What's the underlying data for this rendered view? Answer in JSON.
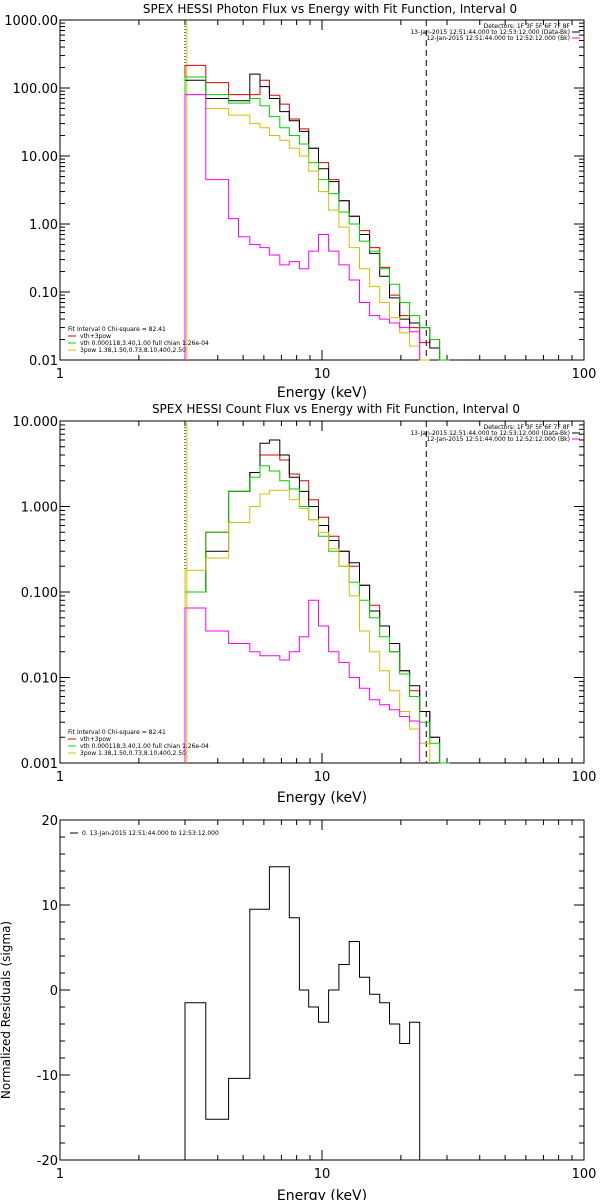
{
  "chart_data": [
    {
      "type": "line",
      "title": "SPEX HESSI Photon Flux vs Energy with Fit Function, Interval 0",
      "xlabel": "Energy (keV)",
      "ylabel": "",
      "x_scale": "log",
      "y_scale": "log",
      "xlim": [
        1,
        100
      ],
      "ylim": [
        0.01,
        1000
      ],
      "x_ticks": [
        {
          "value": 1,
          "label": "1"
        },
        {
          "value": 10,
          "label": "10"
        },
        {
          "value": 100,
          "label": "100"
        }
      ],
      "y_ticks": [
        {
          "value": 0.01,
          "label": "0.01"
        },
        {
          "value": 0.1,
          "label": "0.10"
        },
        {
          "value": 1,
          "label": "1.00"
        },
        {
          "value": 10,
          "label": "10.00"
        },
        {
          "value": 100,
          "label": "100.00"
        },
        {
          "value": 1000,
          "label": "1000.00"
        }
      ],
      "vlines": [
        {
          "x": 3.0,
          "style": "dotted",
          "color": "#000000"
        },
        {
          "x": 25.0,
          "style": "dashed",
          "color": "#000000"
        },
        {
          "x": 3.05,
          "style": "solid",
          "color": "#d4c200"
        }
      ],
      "info_top_right": [
        {
          "text": "Detectors: 1F 3F 5F 6F 7F 8F",
          "color": ""
        },
        {
          "text": "13-Jan-2015 12:51:44.000 to 12:53:12.000 (Data-Bk)",
          "color": "#000000"
        },
        {
          "text": "12-Jan-2015 12:51:44.000 to 12:52:12.000 (Bk)",
          "color": "#ff00ff"
        }
      ],
      "legend_bottom_left": [
        {
          "text": "Fit Interval 0   Chi-square = 82.41",
          "color": ""
        },
        {
          "text": "vth+3pow",
          "color": "#e00000"
        },
        {
          "text": "vth 0.000118,3.40,1.00  full chian 1.26e-04",
          "color": "#00d000"
        },
        {
          "text": "3pow 1.38,1.50,0.73,8.10,400,2.50",
          "color": "#d4c200"
        }
      ],
      "edges": [
        3.0,
        3.3,
        3.6,
        4.0,
        4.4,
        4.8,
        5.3,
        5.8,
        6.3,
        6.9,
        7.5,
        8.2,
        8.9,
        9.7,
        10.6,
        11.6,
        12.7,
        13.9,
        15.2,
        16.6,
        18.1,
        19.8,
        21.6,
        23.6,
        25.8,
        28.1,
        30.7
      ],
      "series": [
        {
          "color": "#e00000",
          "values": [
            215,
            215,
            120,
            120,
            80,
            80,
            80,
            130,
            78,
            58,
            35,
            25,
            13,
            8.0,
            4.5,
            2.2,
            1.3,
            0.8,
            0.45,
            0.23,
            0.09,
            0.045,
            0.03,
            0.018,
            0.02
          ]
        },
        {
          "color": "#000000",
          "values": [
            130,
            130,
            70,
            70,
            65,
            65,
            160,
            105,
            70,
            45,
            33,
            23,
            13,
            6.5,
            4.2,
            2.2,
            1.3,
            0.7,
            0.37,
            0.17,
            0.082,
            0.04,
            0.035,
            0.03,
            0.015,
            0.01
          ]
        },
        {
          "color": "#00d000",
          "values": [
            145,
            145,
            80,
            80,
            60,
            60,
            70,
            55,
            38,
            26,
            20,
            15,
            8.0,
            4.5,
            2.8,
            1.5,
            1.0,
            0.56,
            0.4,
            0.22,
            0.13,
            0.07,
            0.045,
            0.03,
            0.02,
            0.01
          ]
        },
        {
          "color": "#d4c200",
          "values": [
            80,
            80,
            50,
            50,
            40,
            40,
            30,
            26,
            20,
            17,
            13,
            10,
            6.0,
            3.0,
            1.6,
            0.9,
            0.45,
            0.22,
            0.12,
            0.07,
            0.042,
            0.025,
            0.016,
            0.01
          ]
        },
        {
          "color": "#ff00ff",
          "values": [
            80,
            80,
            4.5,
            4.5,
            1.2,
            0.65,
            0.5,
            0.45,
            0.35,
            0.25,
            0.28,
            0.22,
            0.4,
            0.7,
            0.4,
            0.25,
            0.15,
            0.07,
            0.045,
            0.04,
            0.035,
            0.03,
            0.026
          ]
        }
      ]
    },
    {
      "type": "line",
      "title": "SPEX HESSI Count Flux vs Energy with Fit Function, Interval 0",
      "xlabel": "Energy (keV)",
      "ylabel": "",
      "x_scale": "log",
      "y_scale": "log",
      "xlim": [
        1,
        100
      ],
      "ylim": [
        0.001,
        10
      ],
      "x_ticks": [
        {
          "value": 1,
          "label": "1"
        },
        {
          "value": 10,
          "label": "10"
        },
        {
          "value": 100,
          "label": "100"
        }
      ],
      "y_ticks": [
        {
          "value": 0.001,
          "label": "0.001"
        },
        {
          "value": 0.01,
          "label": "0.010"
        },
        {
          "value": 0.1,
          "label": "0.100"
        },
        {
          "value": 1,
          "label": "1.000"
        },
        {
          "value": 10,
          "label": "10.000"
        }
      ],
      "vlines": [
        {
          "x": 3.0,
          "style": "dotted",
          "color": "#000000"
        },
        {
          "x": 25.0,
          "style": "dashed",
          "color": "#000000"
        },
        {
          "x": 3.05,
          "style": "solid",
          "color": "#d4c200"
        }
      ],
      "info_top_right": [
        {
          "text": "Detectors: 1F 3F 5F 6F 7F 8F",
          "color": ""
        },
        {
          "text": "13-Jan-2015 12:51:44.000 to 12:53:12.000 (Data-Bk)",
          "color": "#000000"
        },
        {
          "text": "12-Jan-2015 12:51:44.000 to 12:52:12.000 (Bk)",
          "color": "#ff00ff"
        }
      ],
      "legend_bottom_left": [
        {
          "text": "Fit Interval 0   Chi-square = 82.41",
          "color": ""
        },
        {
          "text": "vth+3pow",
          "color": "#e00000"
        },
        {
          "text": "vth 0.000118,3.40,1.00  full chian 1.26e-04",
          "color": "#00d000"
        },
        {
          "text": "3pow 1.38,1.50,0.73,8.10,400,2.50",
          "color": "#d4c200"
        }
      ],
      "edges": [
        3.0,
        3.3,
        3.6,
        4.0,
        4.4,
        4.8,
        5.3,
        5.8,
        6.3,
        6.9,
        7.5,
        8.2,
        8.9,
        9.7,
        10.6,
        11.6,
        12.7,
        13.9,
        15.2,
        16.6,
        18.1,
        19.8,
        21.6,
        23.6,
        25.8,
        28.1,
        30.7
      ],
      "series": [
        {
          "color": "#e00000",
          "values": [
            0.1,
            0.1,
            0.5,
            0.5,
            1.5,
            1.5,
            2.5,
            4.0,
            4.0,
            3.5,
            2.4,
            2.0,
            1.2,
            0.75,
            0.45,
            0.3,
            0.2,
            0.12,
            0.07,
            0.04,
            0.02,
            0.012,
            0.007,
            0.004,
            0.002,
            0.001
          ]
        },
        {
          "color": "#000000",
          "values": [
            0.1,
            0.1,
            0.3,
            0.3,
            1.5,
            1.5,
            2.5,
            5.5,
            6.0,
            4.0,
            2.2,
            1.5,
            1.0,
            0.6,
            0.4,
            0.3,
            0.22,
            0.12,
            0.06,
            0.04,
            0.025,
            0.012,
            0.008,
            0.004,
            0.002,
            0.001
          ]
        },
        {
          "color": "#00d000",
          "values": [
            0.1,
            0.1,
            0.5,
            0.5,
            1.5,
            1.5,
            2.2,
            3.0,
            2.6,
            2.0,
            1.6,
            1.0,
            0.7,
            0.45,
            0.3,
            0.2,
            0.13,
            0.08,
            0.05,
            0.03,
            0.02,
            0.011,
            0.006,
            0.003,
            0.0017,
            0.001
          ]
        },
        {
          "color": "#d4c200",
          "values": [
            0.18,
            0.18,
            0.25,
            0.25,
            0.65,
            0.65,
            1.0,
            1.4,
            1.55,
            1.55,
            1.2,
            0.95,
            0.7,
            0.5,
            0.32,
            0.2,
            0.09,
            0.035,
            0.02,
            0.012,
            0.007,
            0.004,
            0.0025,
            0.0017
          ]
        },
        {
          "color": "#ff00ff",
          "values": [
            0.065,
            0.065,
            0.035,
            0.035,
            0.025,
            0.025,
            0.02,
            0.018,
            0.018,
            0.016,
            0.02,
            0.03,
            0.08,
            0.04,
            0.02,
            0.015,
            0.01,
            0.0075,
            0.0055,
            0.0048,
            0.0042,
            0.0035,
            0.0031
          ]
        }
      ]
    },
    {
      "type": "line",
      "title": "",
      "xlabel": "Energy (keV)",
      "ylabel": "Normalized Residuals (sigma)",
      "x_scale": "log",
      "y_scale": "linear",
      "xlim": [
        1,
        100
      ],
      "ylim": [
        -20,
        20
      ],
      "x_ticks": [
        {
          "value": 1,
          "label": "1"
        },
        {
          "value": 10,
          "label": "10"
        },
        {
          "value": 100,
          "label": "100"
        }
      ],
      "y_ticks": [
        {
          "value": -20,
          "label": "-20"
        },
        {
          "value": -10,
          "label": "-10"
        },
        {
          "value": 0,
          "label": "0"
        },
        {
          "value": 10,
          "label": "10"
        },
        {
          "value": 20,
          "label": "20"
        }
      ],
      "vlines": [],
      "info_top_right": [],
      "legend_bottom_left": [],
      "legend_top_left": [
        {
          "text": "0. 13-Jan-2015 12:51:44.000 to 12:53:12.000",
          "color": "#000000"
        }
      ],
      "edges": [
        3.0,
        3.6,
        4.4,
        5.3,
        6.3,
        7.5,
        8.2,
        8.9,
        9.7,
        10.6,
        11.6,
        12.7,
        13.9,
        15.2,
        16.6,
        18.1,
        19.8,
        21.6,
        23.6,
        25.8
      ],
      "series": [
        {
          "color": "#000000",
          "values": [
            -1.5,
            -15.2,
            -10.4,
            9.5,
            14.5,
            8.5,
            0.0,
            -2.0,
            -3.8,
            0.0,
            3.0,
            5.7,
            1.5,
            -0.5,
            -1.5,
            -4.0,
            -6.3,
            -3.8
          ]
        }
      ]
    }
  ]
}
